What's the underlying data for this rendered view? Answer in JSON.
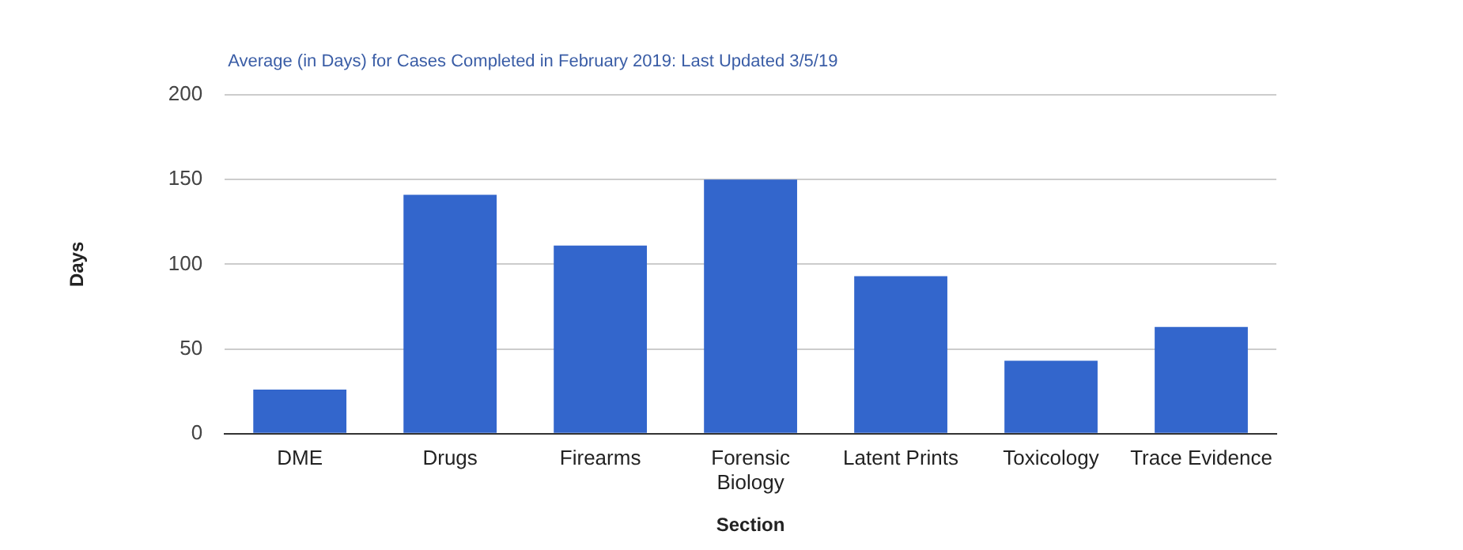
{
  "chart_data": {
    "type": "bar",
    "title": "Average (in Days) for Cases Completed in February 2019: Last Updated 3/5/19",
    "xlabel": "Section",
    "ylabel": "Days",
    "categories": [
      "DME",
      "Drugs",
      "Firearms",
      "Forensic Biology",
      "Latent Prints",
      "Toxicology",
      "Trace Evidence"
    ],
    "values": [
      26,
      141,
      111,
      150,
      93,
      43,
      63
    ],
    "color": "#3366cc",
    "ylim": [
      0,
      200
    ],
    "yticks": [
      0,
      50,
      100,
      150,
      200
    ],
    "grid": "y",
    "legend": false
  }
}
